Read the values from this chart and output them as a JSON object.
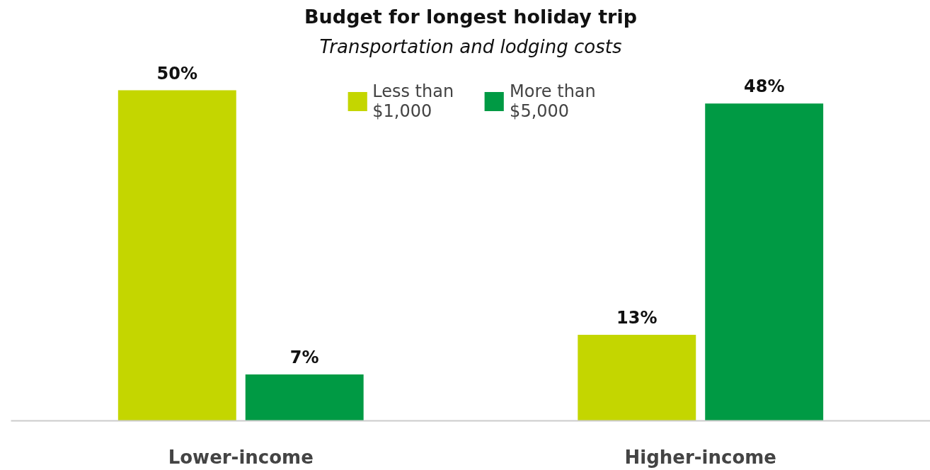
{
  "chart_data": {
    "type": "bar",
    "title": "Budget for longest holiday trip",
    "subtitle": "Transportation and lodging costs",
    "categories": [
      "Lower-income",
      "Higher-income"
    ],
    "series": [
      {
        "name": "Less than $1,000",
        "color": "#c4d600",
        "values": [
          50,
          13
        ],
        "value_labels": [
          "50%",
          "13%"
        ]
      },
      {
        "name": "More than $5,000",
        "color": "#009a44",
        "values": [
          7,
          48
        ],
        "value_labels": [
          "7%",
          "48%"
        ]
      }
    ],
    "legend": "top",
    "grid": false
  }
}
